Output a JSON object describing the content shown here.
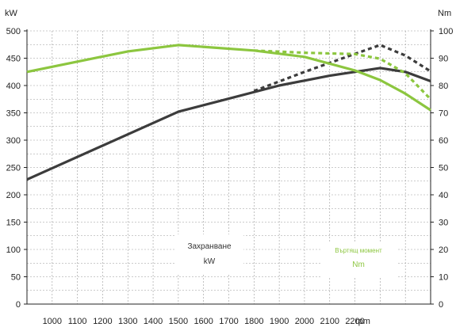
{
  "chart_data": {
    "type": "line",
    "x": [
      900,
      1000,
      1100,
      1200,
      1300,
      1400,
      1500,
      1600,
      1700,
      1800,
      1900,
      2000,
      2100,
      2200,
      2300,
      2400,
      2500
    ],
    "x_tick_labels": [
      "1000",
      "1100",
      "1200",
      "1300",
      "1400",
      "1500",
      "1600",
      "1700",
      "1800",
      "1900",
      "2000",
      "2100",
      "2200"
    ],
    "x_unit": "rpm",
    "xlim": [
      900,
      2500
    ],
    "y_left_unit": "kW",
    "y_left_ticks": [
      "0",
      "50",
      "100",
      "150",
      "200",
      "250",
      "300",
      "350",
      "400",
      "450",
      "500"
    ],
    "y_left_lim": [
      0,
      500
    ],
    "y_right_unit": "Nm",
    "y_right_ticks": [
      "0",
      "10",
      "20",
      "30",
      "40",
      "50",
      "60",
      "70",
      "80",
      "90",
      "100"
    ],
    "y_right_lim": [
      0,
      100
    ],
    "grid": true,
    "series": [
      {
        "axis": "left",
        "style": "solid",
        "color": "#3c3c3c",
        "x": [
          900,
          1500,
          1900,
          2100,
          2300,
          2400,
          2500
        ],
        "values": [
          228,
          352,
          400,
          418,
          432,
          425,
          408
        ]
      },
      {
        "axis": "left",
        "style": "dashed",
        "color": "#3c3c3c",
        "x": [
          1800,
          2000,
          2200,
          2300,
          2400,
          2500
        ],
        "values": [
          390,
          425,
          458,
          474,
          455,
          426
        ]
      },
      {
        "axis": "right",
        "style": "solid",
        "color": "#8cc63f",
        "x": [
          900,
          1300,
          1500,
          1800,
          2000,
          2200,
          2300,
          2400,
          2500
        ],
        "values": [
          85,
          92.5,
          94.8,
          92.8,
          90.5,
          85.5,
          82,
          77,
          71
        ]
      },
      {
        "axis": "right",
        "style": "dashed",
        "color": "#8cc63f",
        "x": [
          1800,
          2000,
          2200,
          2300,
          2400,
          2500
        ],
        "values": [
          92.8,
          92,
          91.5,
          89.8,
          84.5,
          75
        ]
      }
    ],
    "legend": [
      {
        "title": "Захранване",
        "unit": "kW",
        "color": "#333333"
      },
      {
        "title": "Въртящ момент",
        "unit": "Nm",
        "color": "#8cc63f"
      }
    ]
  }
}
